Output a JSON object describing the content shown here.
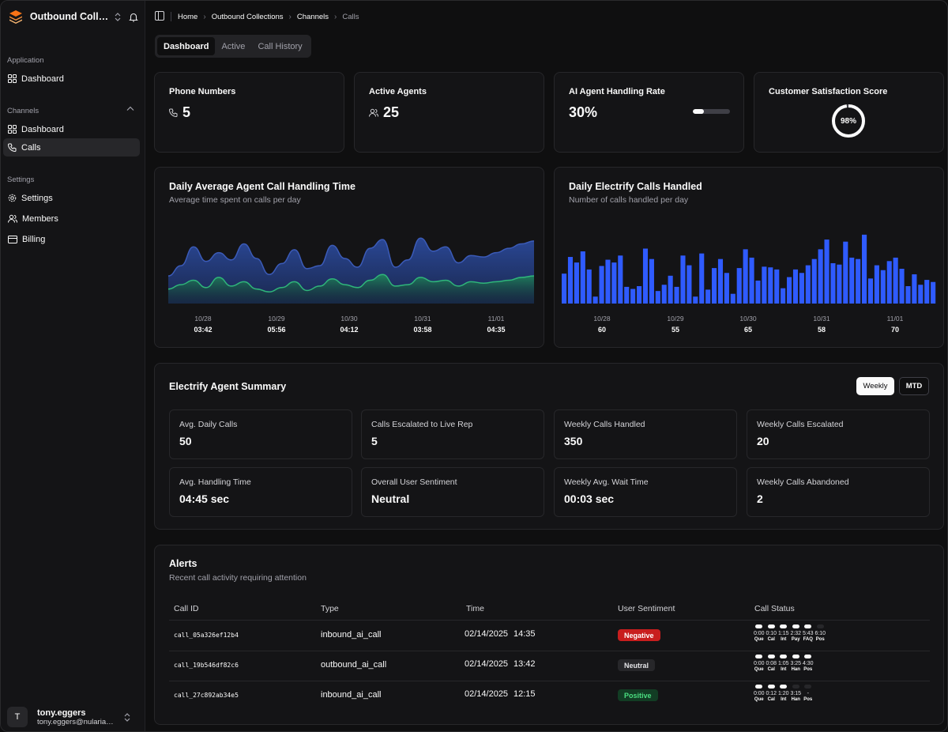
{
  "sidebar": {
    "team_name": "Outbound Collections",
    "groups": {
      "application": "Application",
      "channels": "Channels",
      "settings": "Settings"
    },
    "items": {
      "app_dashboard": "Dashboard",
      "ch_dashboard": "Dashboard",
      "calls": "Calls",
      "settings": "Settings",
      "members": "Members",
      "billing": "Billing"
    },
    "user": {
      "initial": "T",
      "name": "tony.eggers",
      "email": "tony.eggers@nularian.com"
    }
  },
  "breadcrumb": [
    "Home",
    "Outbound Collections",
    "Channels",
    "Calls"
  ],
  "tabs": [
    "Dashboard",
    "Active",
    "Call History"
  ],
  "kpis": {
    "phone_numbers": {
      "title": "Phone Numbers",
      "value": "5"
    },
    "active_agents": {
      "title": "Active Agents",
      "value": "25"
    },
    "ai_rate": {
      "title": "AI Agent Handling Rate",
      "value": "30%",
      "fraction": 0.3
    },
    "csat": {
      "title": "Customer Satisfaction Score",
      "value": "98%",
      "fraction": 0.98
    }
  },
  "charts": {
    "handling": {
      "title": "Daily Average Agent Call Handling Time",
      "subtitle": "Average time spent on calls per day",
      "ticks": [
        {
          "date": "10/28",
          "value": "03:42"
        },
        {
          "date": "10/29",
          "value": "05:56"
        },
        {
          "date": "10/30",
          "value": "04:12"
        },
        {
          "date": "10/31",
          "value": "03:58"
        },
        {
          "date": "11/01",
          "value": "04:35"
        }
      ]
    },
    "calls": {
      "title": "Daily Electrify Calls Handled",
      "subtitle": "Number of calls handled per day",
      "ticks": [
        {
          "date": "10/28",
          "value": "60"
        },
        {
          "date": "10/29",
          "value": "55"
        },
        {
          "date": "10/30",
          "value": "65"
        },
        {
          "date": "10/31",
          "value": "58"
        },
        {
          "date": "11/01",
          "value": "70"
        }
      ]
    }
  },
  "chart_data": [
    {
      "type": "area",
      "series": [
        {
          "values": [
            38,
            52,
            78,
            58,
            70,
            60,
            82,
            62,
            40,
            55,
            74,
            48,
            52,
            80,
            62,
            50,
            76,
            88,
            50,
            60,
            90,
            72,
            78,
            56,
            66,
            64,
            70,
            76,
            82,
            86
          ]
        },
        {
          "values": [
            20,
            26,
            32,
            22,
            36,
            24,
            30,
            20,
            16,
            22,
            30,
            18,
            24,
            34,
            26,
            22,
            32,
            40,
            24,
            26,
            36,
            30,
            32,
            24,
            30,
            28,
            30,
            32,
            36,
            38
          ]
        }
      ]
    },
    {
      "type": "bar",
      "values": [
        43,
        67,
        59,
        75,
        49,
        10,
        54,
        63,
        59,
        69,
        24,
        21,
        25,
        79,
        64,
        18,
        27,
        40,
        24,
        69,
        55,
        10,
        72,
        20,
        51,
        64,
        44,
        14,
        51,
        78,
        66,
        33,
        53,
        52,
        49,
        22,
        38,
        49,
        44,
        55,
        64,
        78,
        92,
        58,
        56,
        89,
        66,
        64,
        99,
        36,
        55,
        48,
        61,
        66,
        50,
        25,
        42,
        27,
        34,
        31
      ]
    }
  ],
  "summary": {
    "title": "Electrify Agent Summary",
    "toggle_weekly": "Weekly",
    "toggle_mtd": "MTD",
    "stats": [
      {
        "label": "Avg. Daily Calls",
        "value": "50"
      },
      {
        "label": "Calls Escalated to Live Rep",
        "value": "5"
      },
      {
        "label": "Weekly Calls Handled",
        "value": "350"
      },
      {
        "label": "Weekly Calls Escalated",
        "value": "20"
      },
      {
        "label": "Avg. Handling Time",
        "value": "04:45 sec"
      },
      {
        "label": "Overall User Sentiment",
        "value": "Neutral"
      },
      {
        "label": "Weekly Avg. Wait Time",
        "value": "00:03 sec"
      },
      {
        "label": "Weekly Calls Abandoned",
        "value": "2"
      }
    ]
  },
  "alerts": {
    "title": "Alerts",
    "subtitle": "Recent call activity requiring attention",
    "headers": [
      "Call ID",
      "Type",
      "Time",
      "User Sentiment",
      "Call Status"
    ],
    "rows": [
      {
        "id": "call_05a326ef12b4",
        "type": "inbound_ai_call",
        "date": "02/14/2025",
        "time": "14:35",
        "sentiment": "Negative",
        "steps": [
          {
            "time": "0:00",
            "label": "Que",
            "on": true
          },
          {
            "time": "0:10",
            "label": "Cal",
            "on": true
          },
          {
            "time": "1:15",
            "label": "Int",
            "on": true
          },
          {
            "time": "2:32",
            "label": "Pay",
            "on": true
          },
          {
            "time": "5:43",
            "label": "FAQ",
            "on": true
          },
          {
            "time": "6:10",
            "label": "Pos",
            "on": false
          }
        ]
      },
      {
        "id": "call_19b546df82c6",
        "type": "outbound_ai_call",
        "date": "02/14/2025",
        "time": "13:42",
        "sentiment": "Neutral",
        "steps": [
          {
            "time": "0:00",
            "label": "Que",
            "on": true
          },
          {
            "time": "0:08",
            "label": "Cal",
            "on": true
          },
          {
            "time": "1:05",
            "label": "Int",
            "on": true
          },
          {
            "time": "3:25",
            "label": "Han",
            "on": true
          },
          {
            "time": "4:30",
            "label": "Pos",
            "on": true
          }
        ]
      },
      {
        "id": "call_27c892ab34e5",
        "type": "inbound_ai_call",
        "date": "02/14/2025",
        "time": "12:15",
        "sentiment": "Positive",
        "steps": [
          {
            "time": "0:00",
            "label": "Que",
            "on": true
          },
          {
            "time": "0:12",
            "label": "Cal",
            "on": true
          },
          {
            "time": "1:20",
            "label": "Int",
            "on": true
          },
          {
            "time": "3:15",
            "label": "Han",
            "on": false
          },
          {
            "time": "-",
            "label": "Pos",
            "on": false
          }
        ]
      }
    ]
  },
  "colors": {
    "bar": "#2f5bff",
    "area_top": "#2b4a9c",
    "area_bottom": "#1f8a5c",
    "negative": "#c81e1e",
    "positive": "#4ade80",
    "logo": "#f97316"
  }
}
